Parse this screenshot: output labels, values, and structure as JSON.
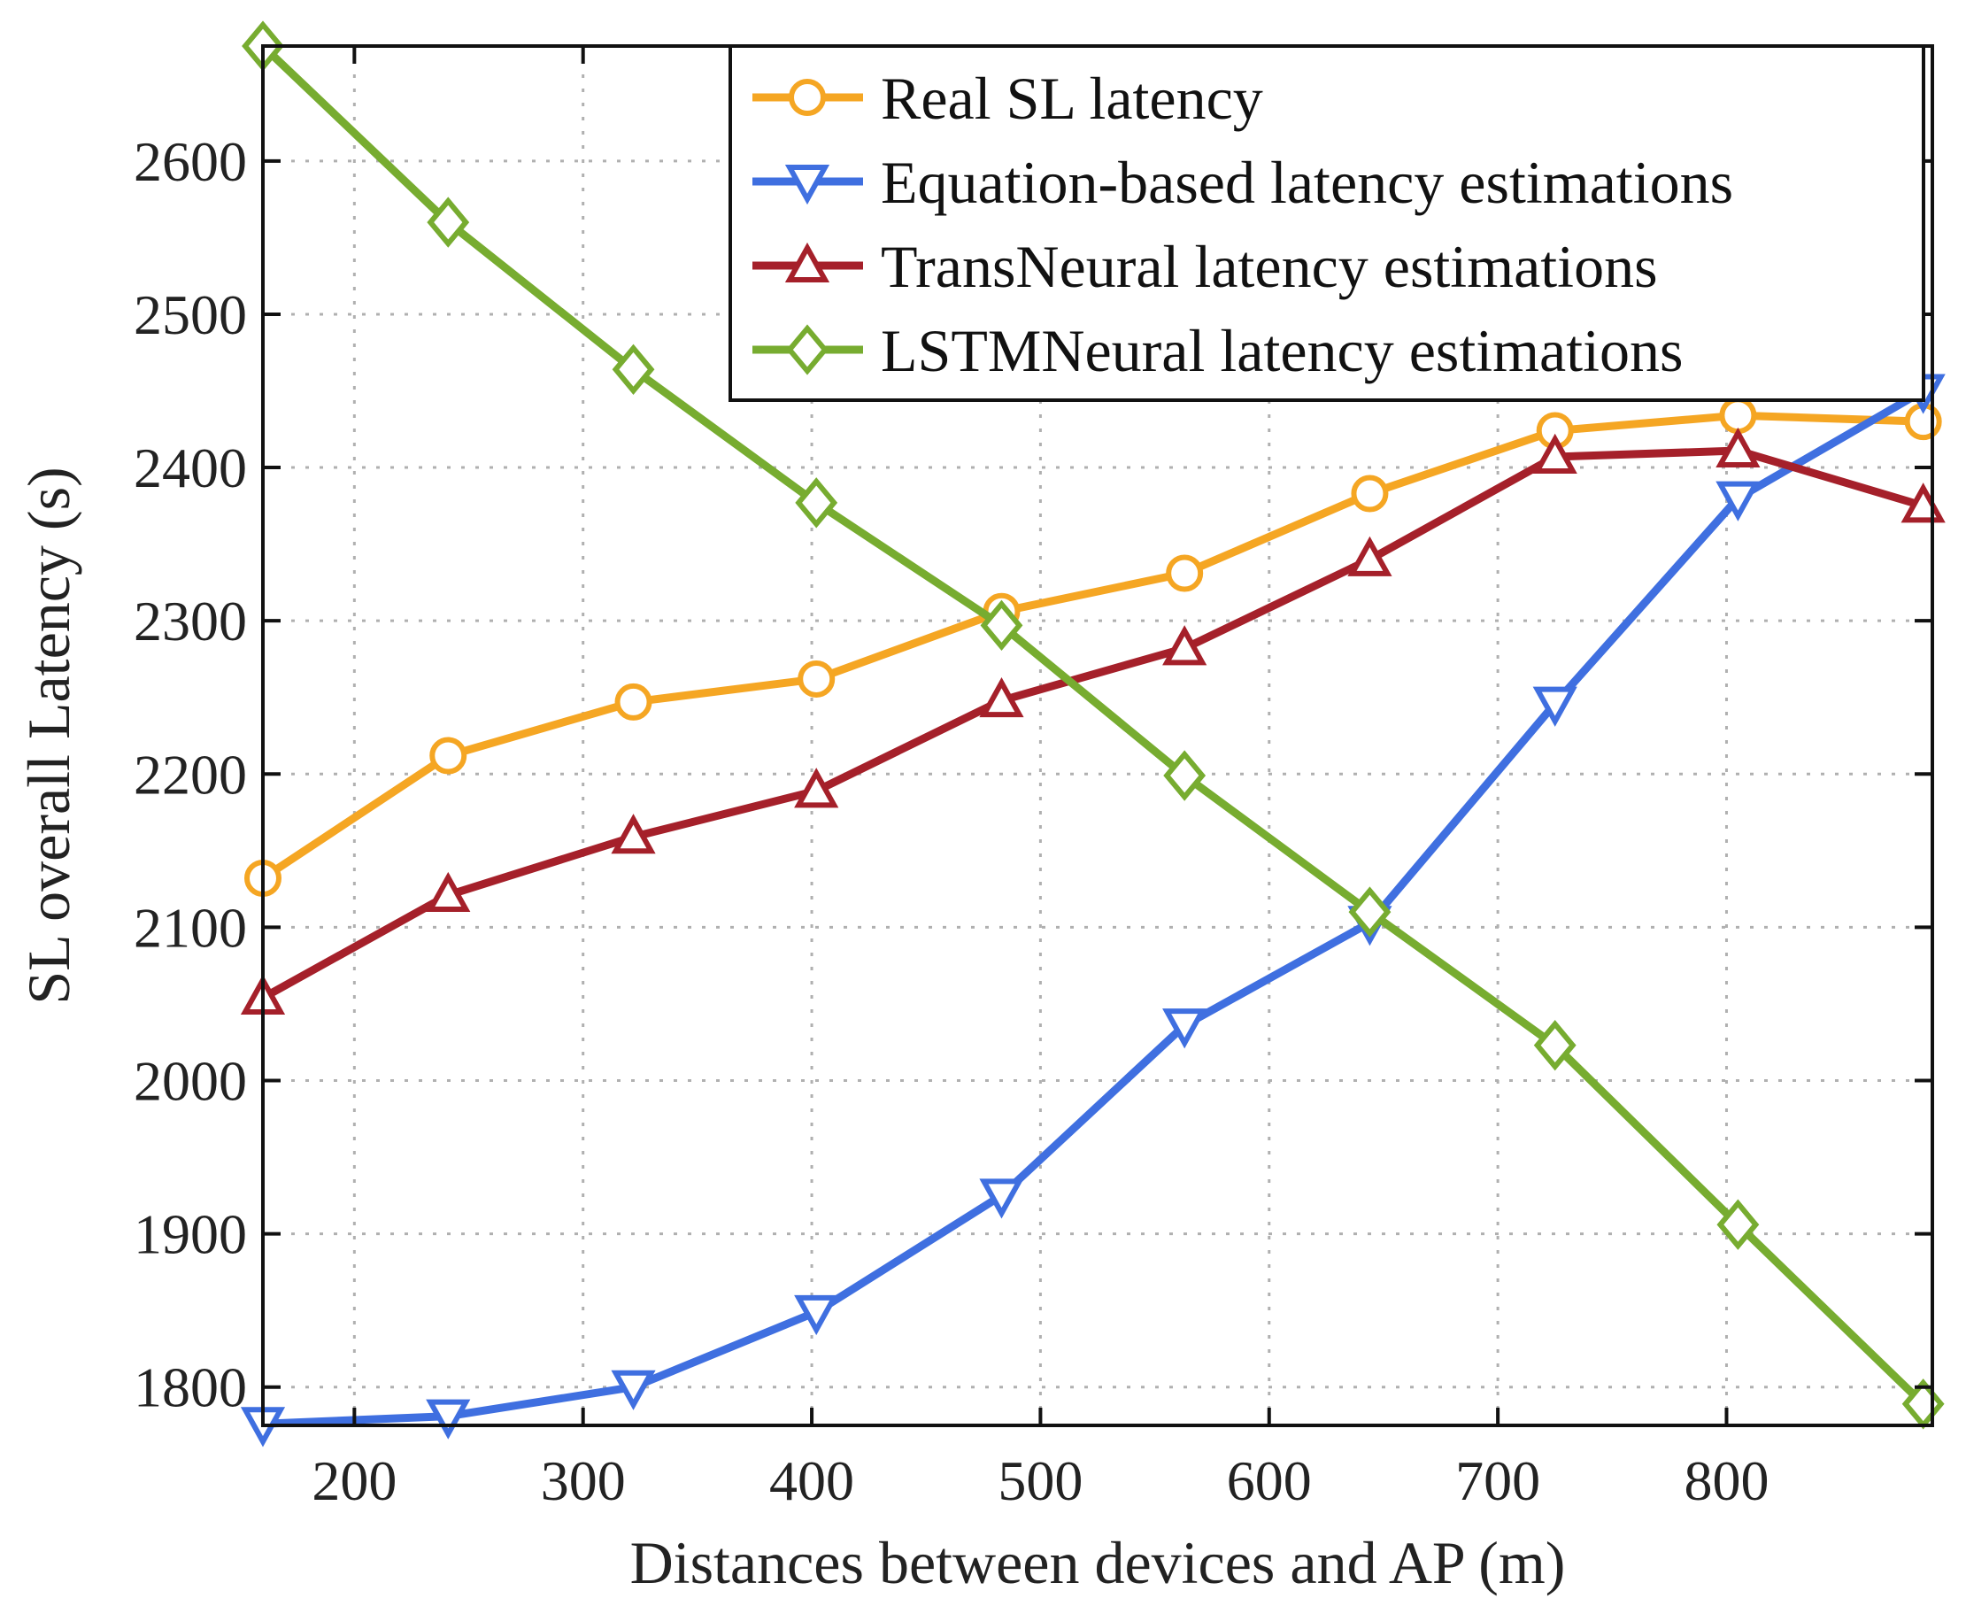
{
  "chart_data": {
    "type": "line",
    "xlabel": "Distances between devices and AP (m)",
    "ylabel": "SL overall Latency (s)",
    "xlim": [
      160,
      890
    ],
    "ylim": [
      1775,
      2675
    ],
    "xticks": [
      200,
      300,
      400,
      500,
      600,
      700,
      800
    ],
    "yticks": [
      1800,
      1900,
      2000,
      2100,
      2200,
      2300,
      2400,
      2500,
      2600
    ],
    "x": [
      160,
      241,
      322,
      402,
      483,
      563,
      644,
      725,
      805,
      886
    ],
    "grid": true,
    "legend_position": "top-right",
    "series": [
      {
        "name": "Real SL latency",
        "color": "#F5A623",
        "marker": "circle",
        "values": [
          2132,
          2212,
          2247,
          2262,
          2306,
          2331,
          2383,
          2424,
          2434,
          2430
        ]
      },
      {
        "name": "Equation-based latency estimations",
        "color": "#3F6FE0",
        "marker": "triangle-down",
        "values": [
          1776,
          1781,
          1800,
          1849,
          1925,
          2036,
          2103,
          2246,
          2380,
          2450
        ]
      },
      {
        "name": "TransNeural latency estimations",
        "color": "#A5202A",
        "marker": "triangle-up",
        "values": [
          2054,
          2121,
          2159,
          2189,
          2248,
          2282,
          2340,
          2407,
          2411,
          2375
        ]
      },
      {
        "name": "LSTMNeural latency estimations",
        "color": "#77AC30",
        "marker": "diamond",
        "values": [
          2675,
          2560,
          2464,
          2377,
          2297,
          2199,
          2110,
          2023,
          1906,
          1789
        ]
      }
    ]
  }
}
